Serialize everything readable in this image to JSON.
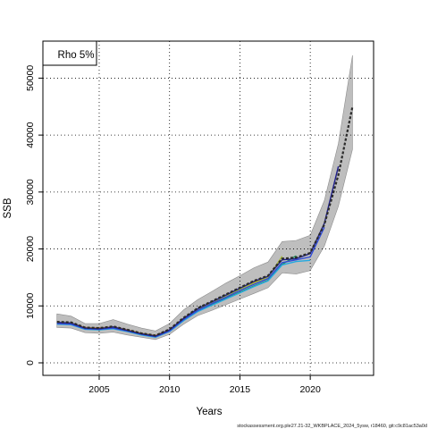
{
  "chart_data": {
    "type": "line",
    "title": "",
    "xlabel": "Years",
    "ylabel": "SSB",
    "xlim": [
      2001.0,
      2024.5
    ],
    "ylim": [
      -2200,
      56500
    ],
    "xticks": [
      2005,
      2010,
      2015,
      2020
    ],
    "yticks": [
      0,
      10000,
      20000,
      30000,
      40000,
      50000
    ],
    "grid": true,
    "legend": {
      "position": "top-left",
      "label": "Rho 5%"
    },
    "colors": {
      "band": "#bebebe",
      "band_edge": "#8c8c8c",
      "base": "#2b2b2b",
      "retro": [
        "#1f1f8a",
        "#2f4bd8",
        "#23a9e0",
        "#1f8f5a",
        "#a8b93a",
        "#c07a2a"
      ]
    },
    "confidence_band": {
      "x": [
        2002,
        2003,
        2004,
        2005,
        2006,
        2007,
        2008,
        2009,
        2010,
        2011,
        2012,
        2013,
        2014,
        2015,
        2016,
        2017,
        2018,
        2019,
        2020,
        2021,
        2022,
        2023
      ],
      "lower": [
        6200,
        6100,
        5300,
        5200,
        5400,
        4900,
        4500,
        4100,
        5000,
        6800,
        8300,
        9200,
        10200,
        11200,
        12200,
        13200,
        15800,
        15600,
        16200,
        20500,
        27500,
        37500
      ],
      "upper": [
        8600,
        8200,
        6900,
        6900,
        7600,
        6800,
        6100,
        5600,
        6900,
        9300,
        11100,
        12500,
        14000,
        15300,
        16700,
        17700,
        21300,
        21500,
        22400,
        28500,
        38500,
        54000
      ]
    },
    "series": [
      {
        "values_x": [
          2002,
          2003,
          2004,
          2005,
          2006,
          2007,
          2008,
          2009,
          2010,
          2011,
          2012,
          2013,
          2014,
          2015,
          2016,
          2017,
          2018,
          2019,
          2020,
          2021,
          2022,
          2023
        ],
        "values_y": [
          7200,
          7100,
          6200,
          6100,
          6400,
          5800,
          5200,
          4800,
          5900,
          7900,
          9600,
          10800,
          12000,
          13200,
          14400,
          15300,
          18300,
          18500,
          19300,
          24300,
          33000,
          45000
        ]
      },
      {
        "values_x": [
          2002,
          2003,
          2004,
          2005,
          2006,
          2007,
          2008,
          2009,
          2010,
          2011,
          2012,
          2013,
          2014,
          2015,
          2016,
          2017,
          2018,
          2019,
          2020,
          2021,
          2022
        ],
        "values_y": [
          7100,
          7000,
          6100,
          6000,
          6300,
          5700,
          5100,
          4700,
          5800,
          7800,
          9500,
          10700,
          11900,
          13100,
          14300,
          15200,
          18100,
          18300,
          19200,
          24500,
          34500
        ]
      },
      {
        "values_x": [
          2002,
          2003,
          2004,
          2005,
          2006,
          2007,
          2008,
          2009,
          2010,
          2011,
          2012,
          2013,
          2014,
          2015,
          2016,
          2017,
          2018,
          2019,
          2020,
          2021
        ],
        "values_y": [
          6900,
          6800,
          6000,
          5900,
          6100,
          5600,
          5000,
          4600,
          5600,
          7600,
          9200,
          10400,
          11500,
          12700,
          13800,
          14800,
          17600,
          18100,
          18600,
          23800
        ]
      },
      {
        "values_x": [
          2002,
          2003,
          2004,
          2005,
          2006,
          2007,
          2008,
          2009,
          2010,
          2011,
          2012,
          2013,
          2014,
          2015,
          2016,
          2017,
          2018,
          2019,
          2020
        ],
        "values_y": [
          6800,
          6700,
          5900,
          5800,
          6000,
          5500,
          4900,
          4500,
          5500,
          7400,
          9000,
          10100,
          11200,
          12300,
          13400,
          14400,
          17200,
          17800,
          18000
        ]
      },
      {
        "values_x": [
          2002,
          2003,
          2004,
          2005,
          2006,
          2007,
          2008,
          2009,
          2010,
          2011,
          2012,
          2013,
          2014,
          2015,
          2016,
          2017,
          2018,
          2019
        ],
        "values_y": [
          6900,
          6800,
          6000,
          5900,
          6100,
          5600,
          5000,
          4600,
          5600,
          7500,
          9100,
          10200,
          11300,
          12400,
          13500,
          14500,
          17300,
          18800
        ]
      },
      {
        "values_x": [
          2002,
          2003,
          2004,
          2005,
          2006,
          2007,
          2008,
          2009,
          2010,
          2011,
          2012,
          2013,
          2014,
          2015,
          2016,
          2017,
          2018
        ],
        "values_y": [
          7000,
          6900,
          6100,
          6000,
          6200,
          5700,
          5100,
          4700,
          5700,
          7600,
          9300,
          10500,
          11700,
          12900,
          14000,
          15000,
          18700
        ]
      },
      {
        "values_x": [
          2002,
          2003,
          2004,
          2005,
          2006,
          2007,
          2008,
          2009,
          2010,
          2011,
          2012,
          2013,
          2014,
          2015,
          2016,
          2017
        ],
        "values_y": [
          7100,
          7000,
          6200,
          6100,
          6300,
          5800,
          5200,
          4800,
          5800,
          7700,
          9400,
          10600,
          11800,
          13000,
          14200,
          15200
        ]
      }
    ]
  },
  "footer_text": "stockassessment.org.ple27.21-32_WKBPLACE_2024_5ysw, r18460, git:c9c81ac53a0d"
}
